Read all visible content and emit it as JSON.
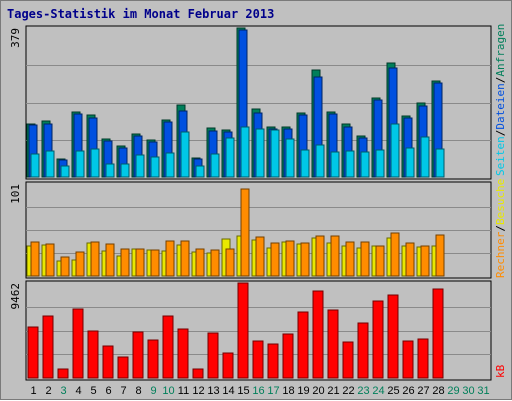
{
  "title": "Tages-Statistik im Monat Februar 2013",
  "legend": {
    "anfragen": {
      "text": "Anfragen",
      "color": "#007f5a"
    },
    "dateien": {
      "text": "Dateien",
      "color": "#0050e0"
    },
    "seiten": {
      "text": "Seiten",
      "color": "#00c8e8"
    },
    "besuche": {
      "text": "Besuche",
      "color": "#e8e800"
    },
    "rechner": {
      "text": "Rechner",
      "color": "#ff8c00"
    },
    "kb": {
      "text": "kB",
      "color": "#ff0000"
    },
    "slash": "/"
  },
  "chart_data": [
    {
      "type": "bar",
      "panel": "top",
      "ymax_label": "379",
      "ylim": [
        0,
        379
      ],
      "categories": [
        "1",
        "2",
        "3",
        "4",
        "5",
        "6",
        "7",
        "8",
        "9",
        "10",
        "11",
        "12",
        "13",
        "14",
        "15",
        "16",
        "17",
        "18",
        "19",
        "20",
        "21",
        "22",
        "23",
        "24",
        "25",
        "26",
        "27",
        "28"
      ],
      "series": [
        {
          "name": "Anfragen",
          "values": [
            136,
            143,
            47,
            166,
            158,
            96,
            79,
            109,
            95,
            146,
            184,
            49,
            125,
            120,
            379,
            174,
            128,
            128,
            164,
            272,
            166,
            135,
            104,
            202,
            291,
            156,
            187,
            245
          ]
        },
        {
          "name": "Dateien",
          "values": [
            131,
            136,
            42,
            160,
            150,
            91,
            74,
            104,
            90,
            139,
            167,
            45,
            118,
            114,
            374,
            164,
            123,
            122,
            158,
            255,
            160,
            128,
            99,
            197,
            277,
            151,
            180,
            238
          ]
        },
        {
          "name": "Seiten",
          "values": [
            59,
            65,
            27,
            65,
            71,
            33,
            32,
            55,
            50,
            60,
            114,
            28,
            58,
            100,
            126,
            123,
            119,
            96,
            68,
            82,
            63,
            65,
            63,
            68,
            136,
            73,
            101,
            72
          ]
        }
      ]
    },
    {
      "type": "bar",
      "panel": "middle",
      "ymax_label": "101",
      "ylim": [
        0,
        101
      ],
      "categories": [
        "1",
        "2",
        "3",
        "4",
        "5",
        "6",
        "7",
        "8",
        "9",
        "10",
        "11",
        "12",
        "13",
        "14",
        "15",
        "16",
        "17",
        "18",
        "19",
        "20",
        "21",
        "22",
        "23",
        "24",
        "25",
        "26",
        "27",
        "28"
      ],
      "series": [
        {
          "name": "Besuche",
          "values": [
            33,
            34,
            17,
            18,
            36,
            27,
            22,
            30,
            29,
            27,
            34,
            26,
            25,
            41,
            44,
            40,
            31,
            37,
            35,
            42,
            36,
            33,
            31,
            33,
            42,
            33,
            32,
            33
          ]
        },
        {
          "name": "Rechner",
          "values": [
            37,
            35,
            21,
            26,
            37,
            35,
            30,
            30,
            29,
            38,
            38,
            30,
            28,
            30,
            96,
            43,
            36,
            38,
            36,
            44,
            44,
            37,
            37,
            33,
            47,
            36,
            33,
            45
          ]
        }
      ]
    },
    {
      "type": "bar",
      "panel": "bottom",
      "ymax_label": "9462",
      "ylim": [
        0,
        9462
      ],
      "categories": [
        "1",
        "2",
        "3",
        "4",
        "5",
        "6",
        "7",
        "8",
        "9",
        "10",
        "11",
        "12",
        "13",
        "14",
        "15",
        "16",
        "17",
        "18",
        "19",
        "20",
        "21",
        "22",
        "23",
        "24",
        "25",
        "26",
        "27",
        "28"
      ],
      "series": [
        {
          "name": "kB",
          "values": [
            5108,
            6163,
            935,
            6871,
            4634,
            3217,
            2127,
            4564,
            3741,
            6217,
            4894,
            929,
            4498,
            2530,
            9462,
            3725,
            3344,
            4334,
            6554,
            8644,
            6766,
            3605,
            5470,
            7700,
            8232,
            3706,
            3863,
            8829
          ]
        }
      ]
    }
  ],
  "days": [
    {
      "label": "1",
      "color": "#000000"
    },
    {
      "label": "2",
      "color": "#000000"
    },
    {
      "label": "3",
      "color": "#007f5a"
    },
    {
      "label": "4",
      "color": "#000000"
    },
    {
      "label": "5",
      "color": "#000000"
    },
    {
      "label": "6",
      "color": "#000000"
    },
    {
      "label": "7",
      "color": "#000000"
    },
    {
      "label": "8",
      "color": "#000000"
    },
    {
      "label": "9",
      "color": "#007f5a"
    },
    {
      "label": "10",
      "color": "#007f5a"
    },
    {
      "label": "11",
      "color": "#000000"
    },
    {
      "label": "12",
      "color": "#000000"
    },
    {
      "label": "13",
      "color": "#000000"
    },
    {
      "label": "14",
      "color": "#000000"
    },
    {
      "label": "15",
      "color": "#000000"
    },
    {
      "label": "16",
      "color": "#007f5a"
    },
    {
      "label": "17",
      "color": "#007f5a"
    },
    {
      "label": "18",
      "color": "#000000"
    },
    {
      "label": "19",
      "color": "#000000"
    },
    {
      "label": "20",
      "color": "#000000"
    },
    {
      "label": "21",
      "color": "#000000"
    },
    {
      "label": "22",
      "color": "#000000"
    },
    {
      "label": "23",
      "color": "#007f5a"
    },
    {
      "label": "24",
      "color": "#007f5a"
    },
    {
      "label": "25",
      "color": "#000000"
    },
    {
      "label": "26",
      "color": "#000000"
    },
    {
      "label": "27",
      "color": "#000000"
    },
    {
      "label": "28",
      "color": "#000000"
    },
    {
      "label": "29",
      "color": "#007f5a"
    },
    {
      "label": "30",
      "color": "#007f5a"
    },
    {
      "label": "31",
      "color": "#007f5a"
    }
  ]
}
